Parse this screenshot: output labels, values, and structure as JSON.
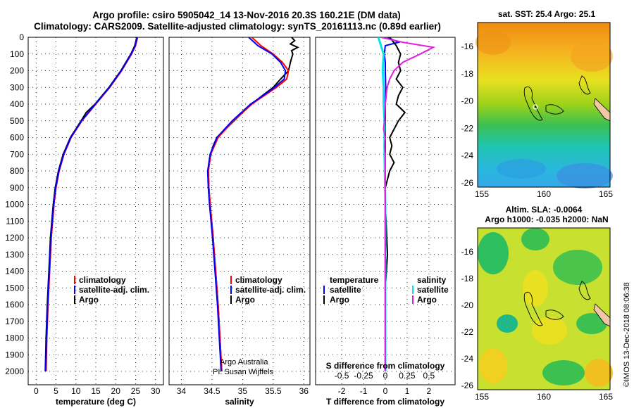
{
  "header": {
    "line1": "Argo profile: csiro 5905042_14 13-Nov-2016 20.3S 160.21E (DM data)",
    "line2": "Climatology: CARS2009. Satellite-adjusted climatology: synTS_20161113.nc (0.89d earlier)"
  },
  "colors": {
    "climatology": "#ff0000",
    "satellite": "#0000ff",
    "argo": "#000000",
    "sal_sat": "#00e5ee",
    "sal_argo": "#e020e0"
  },
  "chart_data": [
    {
      "type": "line",
      "id": "temperature",
      "xlabel": "temperature (deg C)",
      "xlim": [
        -2,
        32
      ],
      "ylim": [
        0,
        2080
      ],
      "xticks": [
        0,
        5,
        10,
        15,
        20,
        25,
        30
      ],
      "yticks": [
        0,
        100,
        200,
        300,
        400,
        500,
        600,
        700,
        800,
        900,
        1000,
        1100,
        1200,
        1300,
        1400,
        1500,
        1600,
        1700,
        1800,
        1900,
        2000
      ],
      "legend": [
        "climatology",
        "satellite-adj. clim.",
        "Argo"
      ],
      "series": [
        {
          "name": "climatology",
          "depth": [
            0,
            50,
            100,
            200,
            300,
            400,
            500,
            600,
            700,
            800,
            900,
            1000,
            1200,
            1400,
            1600,
            1800,
            2000
          ],
          "values": [
            25.5,
            25.0,
            24.0,
            21.5,
            18.5,
            15.0,
            11.5,
            8.8,
            7.0,
            5.8,
            5.0,
            4.5,
            3.8,
            3.4,
            3.0,
            2.7,
            2.5
          ]
        },
        {
          "name": "satellite-adj. clim.",
          "depth": [
            0,
            50,
            100,
            200,
            300,
            400,
            500,
            600,
            700,
            800,
            900,
            1000,
            1200,
            1400,
            1600,
            1800,
            2000
          ],
          "values": [
            25.4,
            24.9,
            23.9,
            21.4,
            18.4,
            14.9,
            11.4,
            8.7,
            6.9,
            5.7,
            4.9,
            4.4,
            3.7,
            3.3,
            2.9,
            2.6,
            2.4
          ]
        },
        {
          "name": "Argo",
          "depth": [
            0,
            50,
            100,
            200,
            300,
            400,
            450,
            500,
            600,
            700,
            800,
            900,
            1000,
            1200,
            1400,
            1600,
            1800,
            2000
          ],
          "values": [
            25.3,
            24.8,
            23.8,
            21.3,
            18.3,
            14.8,
            12.6,
            11.3,
            8.6,
            6.8,
            5.6,
            4.8,
            4.3,
            3.6,
            3.2,
            2.8,
            2.5,
            2.3
          ]
        }
      ]
    },
    {
      "type": "line",
      "id": "salinity",
      "xlabel": "salinity",
      "xlim": [
        33.8,
        36.1
      ],
      "ylim": [
        0,
        2080
      ],
      "xticks": [
        34,
        34.5,
        35,
        35.5,
        36
      ],
      "legend": [
        "climatology",
        "satellite-adj. clim.",
        "Argo"
      ],
      "credit1": "Argo Australia",
      "credit2": "PI: Susan Wijffels",
      "series": [
        {
          "name": "climatology",
          "depth": [
            0,
            50,
            100,
            150,
            200,
            250,
            300,
            350,
            400,
            500,
            600,
            700,
            800,
            900,
            1000,
            1200,
            1400,
            1600,
            1800,
            2000
          ],
          "values": [
            35.15,
            35.3,
            35.5,
            35.65,
            35.75,
            35.72,
            35.55,
            35.35,
            35.15,
            34.85,
            34.6,
            34.48,
            34.44,
            34.45,
            34.47,
            34.52,
            34.56,
            34.6,
            34.63,
            34.66
          ]
        },
        {
          "name": "satellite-adj. clim.",
          "depth": [
            0,
            50,
            100,
            150,
            200,
            250,
            300,
            350,
            400,
            500,
            600,
            700,
            800,
            900,
            1000,
            1200,
            1400,
            1600,
            1800,
            2000
          ],
          "values": [
            35.1,
            35.25,
            35.48,
            35.62,
            35.7,
            35.68,
            35.52,
            35.33,
            35.13,
            34.83,
            34.58,
            34.47,
            34.43,
            34.44,
            34.46,
            34.51,
            34.55,
            34.59,
            34.62,
            34.65
          ]
        },
        {
          "name": "Argo",
          "depth": [
            0,
            20,
            40,
            60,
            80,
            100,
            150,
            200,
            250,
            300,
            350,
            400,
            450,
            500,
            550,
            600,
            650,
            700,
            800,
            900,
            1000,
            1200,
            1400,
            1600,
            1800,
            2000
          ],
          "values": [
            35.8,
            35.85,
            35.78,
            35.9,
            35.8,
            35.82,
            35.78,
            35.75,
            35.62,
            35.5,
            35.32,
            35.15,
            35.0,
            34.86,
            34.72,
            34.58,
            34.52,
            34.48,
            34.44,
            34.45,
            34.47,
            34.52,
            34.56,
            34.6,
            34.63,
            34.66
          ]
        }
      ]
    },
    {
      "type": "line",
      "id": "difference",
      "xlabel": "T difference from climatology",
      "xlabel2": "S difference from climatology",
      "xlim": [
        -3.2,
        3.2
      ],
      "ylim": [
        0,
        2080
      ],
      "xticks": [
        -2,
        -1,
        0,
        1,
        2
      ],
      "xtick_labels": [
        "-2",
        "-1",
        "0",
        "1",
        "2"
      ],
      "sticks": [
        -0.5,
        -0.25,
        0,
        0.25,
        0.5
      ],
      "stick_labels": [
        "-0.5",
        "-0.25",
        "0",
        "0.25",
        "0.5"
      ],
      "legend_left_title": "temperature",
      "legend_right_title": "salinity",
      "legend": [
        "satellite",
        "Argo",
        "satellite",
        "Argo"
      ],
      "series": [
        {
          "name": "T satellite",
          "depth": [
            0,
            30,
            50,
            100,
            150,
            200,
            300,
            400,
            500,
            700,
            1000,
            1500,
            2000
          ],
          "values": [
            0.1,
            0.6,
            0.0,
            -0.05,
            0.0,
            0.0,
            0.02,
            0.0,
            0.0,
            0.0,
            0.0,
            0.0,
            0.0
          ]
        },
        {
          "name": "T Argo",
          "depth": [
            0,
            50,
            100,
            150,
            200,
            250,
            300,
            350,
            400,
            450,
            500,
            550,
            600,
            650,
            700,
            750,
            800,
            850,
            900,
            1000,
            1300,
            1500,
            2000
          ],
          "values": [
            0.2,
            0.5,
            0.7,
            0.6,
            0.7,
            0.5,
            0.8,
            0.6,
            0.5,
            0.9,
            0.6,
            0.4,
            0.2,
            0.3,
            0.2,
            0.4,
            0.2,
            0.1,
            0.0,
            0.0,
            0.1,
            0.0,
            0.0
          ]
        },
        {
          "name": "S satellite",
          "depth": [
            0,
            50,
            100,
            200,
            300,
            400,
            500,
            700,
            1000,
            1500,
            2000
          ],
          "values": [
            -0.08,
            -0.05,
            -0.02,
            -0.03,
            -0.02,
            -0.02,
            -0.01,
            -0.01,
            0.0,
            0.0,
            0.0
          ]
        },
        {
          "name": "S Argo",
          "depth": [
            0,
            30,
            60,
            100,
            150,
            200,
            250,
            300,
            400,
            500,
            550,
            600,
            650,
            700,
            800,
            900,
            1000,
            1500,
            2000
          ],
          "values": [
            -0.05,
            0.2,
            0.55,
            0.4,
            0.2,
            0.1,
            0.05,
            0.02,
            0.0,
            -0.01,
            -0.02,
            0.0,
            -0.01,
            0.0,
            0.0,
            0.0,
            0.0,
            0.0,
            0.0
          ]
        }
      ]
    }
  ],
  "maps": {
    "sst": {
      "title": "sat. SST: 25.4 Argo: 25.1",
      "yticks": [
        "-16",
        "-18",
        "-20",
        "-22",
        "-24",
        "-26"
      ],
      "xticks": [
        "155",
        "160",
        "165"
      ]
    },
    "sla": {
      "title1": "Altim. SLA: -0.0064",
      "title2": "Argo h1000: -0.035 h2000: NaN",
      "yticks": [
        "-16",
        "-18",
        "-20",
        "-22",
        "-24",
        "-26"
      ],
      "xticks": [
        "155",
        "160",
        "165"
      ]
    }
  },
  "footer": {
    "stamp": "©IMOS 13-Dec-2018 08:06:38"
  }
}
